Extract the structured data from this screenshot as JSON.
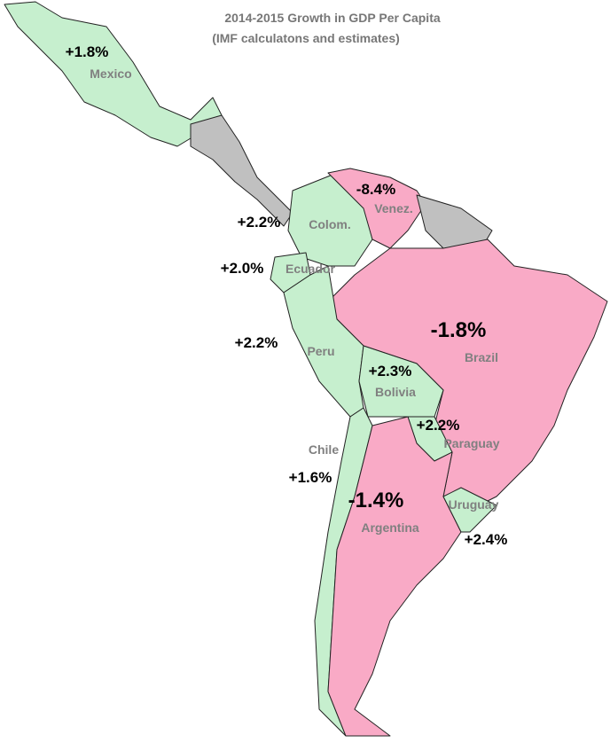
{
  "title": "2014-2015 Growth in GDP Per Capita",
  "subtitle": "(IMF calculatons and estimates)",
  "countries": [
    {
      "name": "Mexico",
      "growth": "+1.8%"
    },
    {
      "name": "Colom.",
      "growth": "+2.2%"
    },
    {
      "name": "Venez.",
      "growth": "-8.4%"
    },
    {
      "name": "Ecuador",
      "growth": "+2.0%"
    },
    {
      "name": "Peru",
      "growth": "+2.2%"
    },
    {
      "name": "Brazil",
      "growth": "-1.8%"
    },
    {
      "name": "Bolivia",
      "growth": "+2.3%"
    },
    {
      "name": "Paraguay",
      "growth": "+2.2%"
    },
    {
      "name": "Chile",
      "growth": "+1.6%"
    },
    {
      "name": "Argentina",
      "growth": "-1.4%"
    },
    {
      "name": "Uruguay",
      "growth": "+2.4%"
    }
  ]
}
